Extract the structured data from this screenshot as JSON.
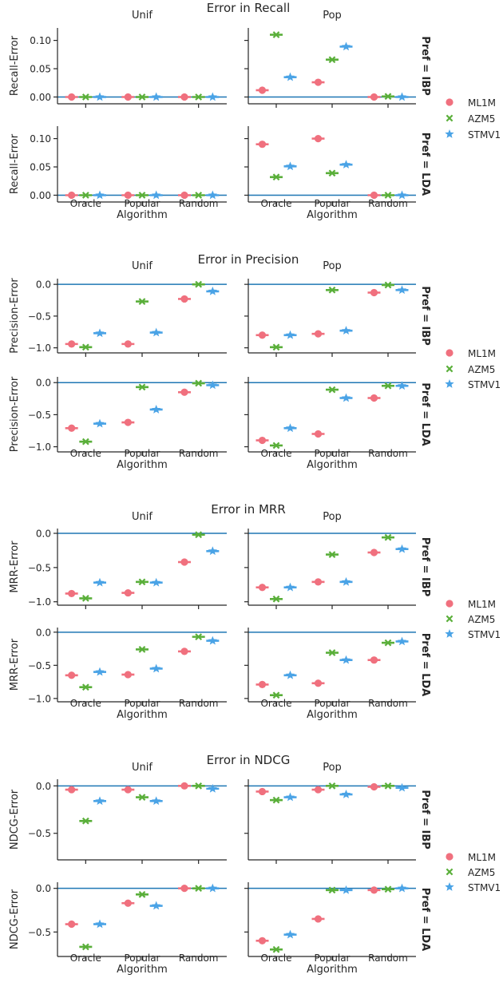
{
  "chart_data": [
    {
      "type": "scatter",
      "title": "Error in Recall",
      "ylabel": "Recall-Error",
      "xlabel": "Algorithm",
      "categories": [
        "Oracle",
        "Popular",
        "Random"
      ],
      "col_labels": [
        "Unif",
        "Pop"
      ],
      "row_labels": [
        "Pref = IBP",
        "Pref = LDA"
      ],
      "ylim": [
        -0.012,
        0.122
      ],
      "yticks": [
        0.0,
        0.05,
        0.1
      ],
      "ytick_labels": [
        "0.00",
        "0.05",
        "0.10"
      ],
      "legend": [
        "ML1M",
        "AZM5",
        "STMV1"
      ],
      "panels": [
        {
          "row": 0,
          "col": 0,
          "series": [
            {
              "name": "ML1M",
              "values": [
                0.0,
                0.0,
                0.0
              ]
            },
            {
              "name": "AZM5",
              "values": [
                0.0,
                0.0,
                0.0
              ]
            },
            {
              "name": "STMV1",
              "values": [
                0.0,
                0.0,
                0.0
              ]
            }
          ]
        },
        {
          "row": 0,
          "col": 1,
          "series": [
            {
              "name": "ML1M",
              "values": [
                0.012,
                0.026,
                0.0
              ]
            },
            {
              "name": "AZM5",
              "values": [
                0.11,
                0.066,
                0.001
              ]
            },
            {
              "name": "STMV1",
              "values": [
                0.035,
                0.089,
                0.0
              ]
            }
          ]
        },
        {
          "row": 1,
          "col": 0,
          "series": [
            {
              "name": "ML1M",
              "values": [
                0.0,
                0.0,
                0.0
              ]
            },
            {
              "name": "AZM5",
              "values": [
                0.0,
                0.0,
                0.0
              ]
            },
            {
              "name": "STMV1",
              "values": [
                0.0,
                0.0,
                0.0
              ]
            }
          ]
        },
        {
          "row": 1,
          "col": 1,
          "series": [
            {
              "name": "ML1M",
              "values": [
                0.09,
                0.1,
                0.0
              ]
            },
            {
              "name": "AZM5",
              "values": [
                0.032,
                0.039,
                0.0
              ]
            },
            {
              "name": "STMV1",
              "values": [
                0.051,
                0.054,
                0.0
              ]
            }
          ]
        }
      ]
    },
    {
      "type": "scatter",
      "title": "Error in Precision",
      "ylabel": "Precision-Error",
      "xlabel": "Algorithm",
      "categories": [
        "Oracle",
        "Popular",
        "Random"
      ],
      "col_labels": [
        "Unif",
        "Pop"
      ],
      "row_labels": [
        "Pref = IBP",
        "Pref = LDA"
      ],
      "ylim": [
        -1.08,
        0.09
      ],
      "yticks": [
        0.0,
        -0.5,
        -1.0
      ],
      "ytick_labels": [
        "0.0",
        "−0.5",
        "−1.0"
      ],
      "legend": [
        "ML1M",
        "AZM5",
        "STMV1"
      ],
      "panels": [
        {
          "row": 0,
          "col": 0,
          "series": [
            {
              "name": "ML1M",
              "values": [
                -0.94,
                -0.94,
                -0.23
              ]
            },
            {
              "name": "AZM5",
              "values": [
                -0.99,
                -0.27,
                0.0
              ]
            },
            {
              "name": "STMV1",
              "values": [
                -0.77,
                -0.76,
                -0.11
              ]
            }
          ]
        },
        {
          "row": 0,
          "col": 1,
          "series": [
            {
              "name": "ML1M",
              "values": [
                -0.8,
                -0.78,
                -0.13
              ]
            },
            {
              "name": "AZM5",
              "values": [
                -0.99,
                -0.09,
                -0.01
              ]
            },
            {
              "name": "STMV1",
              "values": [
                -0.8,
                -0.73,
                -0.09
              ]
            }
          ]
        },
        {
          "row": 1,
          "col": 0,
          "series": [
            {
              "name": "ML1M",
              "values": [
                -0.71,
                -0.62,
                -0.15
              ]
            },
            {
              "name": "AZM5",
              "values": [
                -0.92,
                -0.07,
                -0.01
              ]
            },
            {
              "name": "STMV1",
              "values": [
                -0.64,
                -0.42,
                -0.04
              ]
            }
          ]
        },
        {
          "row": 1,
          "col": 1,
          "series": [
            {
              "name": "ML1M",
              "values": [
                -0.9,
                -0.8,
                -0.24
              ]
            },
            {
              "name": "AZM5",
              "values": [
                -0.98,
                -0.11,
                -0.05
              ]
            },
            {
              "name": "STMV1",
              "values": [
                -0.71,
                -0.24,
                -0.05
              ]
            }
          ]
        }
      ]
    },
    {
      "type": "scatter",
      "title": "Error in MRR",
      "ylabel": "MRR-Error",
      "xlabel": "Algorithm",
      "categories": [
        "Oracle",
        "Popular",
        "Random"
      ],
      "col_labels": [
        "Unif",
        "Pop"
      ],
      "row_labels": [
        "Pref = IBP",
        "Pref = LDA"
      ],
      "ylim": [
        -1.05,
        0.07
      ],
      "yticks": [
        0.0,
        -0.5,
        -1.0
      ],
      "ytick_labels": [
        "0.0",
        "−0.5",
        "−1.0"
      ],
      "legend": [
        "ML1M",
        "AZM5",
        "STMV1"
      ],
      "panels": [
        {
          "row": 0,
          "col": 0,
          "series": [
            {
              "name": "ML1M",
              "values": [
                -0.88,
                -0.87,
                -0.42
              ]
            },
            {
              "name": "AZM5",
              "values": [
                -0.95,
                -0.71,
                -0.02
              ]
            },
            {
              "name": "STMV1",
              "values": [
                -0.72,
                -0.72,
                -0.26
              ]
            }
          ]
        },
        {
          "row": 0,
          "col": 1,
          "series": [
            {
              "name": "ML1M",
              "values": [
                -0.79,
                -0.71,
                -0.28
              ]
            },
            {
              "name": "AZM5",
              "values": [
                -0.96,
                -0.31,
                -0.06
              ]
            },
            {
              "name": "STMV1",
              "values": [
                -0.79,
                -0.71,
                -0.23
              ]
            }
          ]
        },
        {
          "row": 1,
          "col": 0,
          "series": [
            {
              "name": "ML1M",
              "values": [
                -0.65,
                -0.64,
                -0.29
              ]
            },
            {
              "name": "AZM5",
              "values": [
                -0.83,
                -0.26,
                -0.07
              ]
            },
            {
              "name": "STMV1",
              "values": [
                -0.6,
                -0.55,
                -0.13
              ]
            }
          ]
        },
        {
          "row": 1,
          "col": 1,
          "series": [
            {
              "name": "ML1M",
              "values": [
                -0.79,
                -0.77,
                -0.42
              ]
            },
            {
              "name": "AZM5",
              "values": [
                -0.95,
                -0.31,
                -0.16
              ]
            },
            {
              "name": "STMV1",
              "values": [
                -0.65,
                -0.42,
                -0.14
              ]
            }
          ]
        }
      ]
    },
    {
      "type": "scatter",
      "title": "Error in NDCG",
      "ylabel": "NDCG-Error",
      "xlabel": "Algorithm",
      "categories": [
        "Oracle",
        "Popular",
        "Random"
      ],
      "col_labels": [
        "Unif",
        "Pop"
      ],
      "row_labels": [
        "Pref = IBP",
        "Pref = LDA"
      ],
      "ylim": [
        -0.78,
        0.07
      ],
      "yticks": [
        0.0,
        -0.5
      ],
      "ytick_labels": [
        "0.0",
        "−0.5"
      ],
      "legend": [
        "ML1M",
        "AZM5",
        "STMV1"
      ],
      "panels": [
        {
          "row": 0,
          "col": 0,
          "series": [
            {
              "name": "ML1M",
              "values": [
                -0.04,
                -0.04,
                0.0
              ]
            },
            {
              "name": "AZM5",
              "values": [
                -0.37,
                -0.12,
                0.0
              ]
            },
            {
              "name": "STMV1",
              "values": [
                -0.16,
                -0.16,
                -0.03
              ]
            }
          ]
        },
        {
          "row": 0,
          "col": 1,
          "series": [
            {
              "name": "ML1M",
              "values": [
                -0.06,
                -0.04,
                -0.01
              ]
            },
            {
              "name": "AZM5",
              "values": [
                -0.15,
                0.0,
                0.0
              ]
            },
            {
              "name": "STMV1",
              "values": [
                -0.12,
                -0.09,
                -0.02
              ]
            }
          ]
        },
        {
          "row": 1,
          "col": 0,
          "series": [
            {
              "name": "ML1M",
              "values": [
                -0.41,
                -0.17,
                0.0
              ]
            },
            {
              "name": "AZM5",
              "values": [
                -0.67,
                -0.07,
                0.0
              ]
            },
            {
              "name": "STMV1",
              "values": [
                -0.41,
                -0.2,
                0.0
              ]
            }
          ]
        },
        {
          "row": 1,
          "col": 1,
          "series": [
            {
              "name": "ML1M",
              "values": [
                -0.6,
                -0.35,
                -0.02
              ]
            },
            {
              "name": "AZM5",
              "values": [
                -0.7,
                -0.02,
                -0.01
              ]
            },
            {
              "name": "STMV1",
              "values": [
                -0.53,
                -0.02,
                0.0
              ]
            }
          ]
        }
      ]
    }
  ],
  "colors": {
    "ML1M": "#f0707e",
    "AZM5": "#5aaf3a",
    "STMV1": "#4aa3e6",
    "zero_line": "#1f77b4",
    "axis": "#262626"
  },
  "markers": {
    "ML1M": "circle",
    "AZM5": "x",
    "STMV1": "star"
  }
}
